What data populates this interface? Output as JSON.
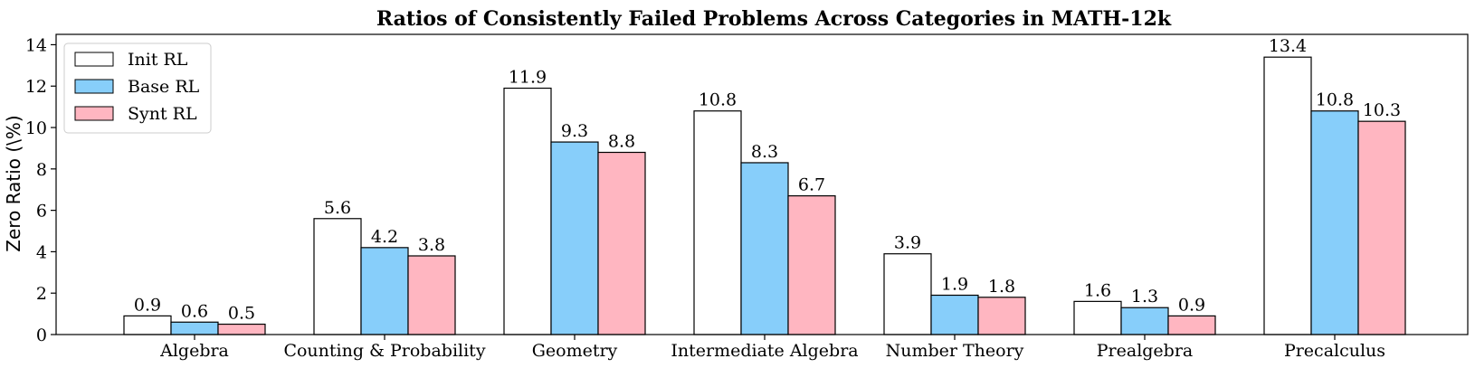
{
  "chart_data": {
    "type": "bar",
    "title": "Ratios of Consistently Failed Problems Across Categories in MATH-12k",
    "xlabel": "",
    "ylabel": "Zero Ratio (\\%)",
    "ylim": [
      0,
      14.5
    ],
    "yticks": [
      0,
      2,
      4,
      6,
      8,
      10,
      12,
      14
    ],
    "categories": [
      "Algebra",
      "Counting & Probability",
      "Geometry",
      "Intermediate Algebra",
      "Number Theory",
      "Prealgebra",
      "Precalculus"
    ],
    "series": [
      {
        "name": "Init RL",
        "color": "#ffffff",
        "values": [
          0.9,
          5.6,
          11.9,
          10.8,
          3.9,
          1.6,
          13.4
        ]
      },
      {
        "name": "Base RL",
        "color": "#87cefa",
        "values": [
          0.6,
          4.2,
          9.3,
          8.3,
          1.9,
          1.3,
          10.8
        ]
      },
      {
        "name": "Synt RL",
        "color": "#ffb6c1",
        "values": [
          0.5,
          3.8,
          8.8,
          6.7,
          1.8,
          0.9,
          10.3
        ]
      }
    ],
    "legend_position": "top-left",
    "grid": false
  }
}
